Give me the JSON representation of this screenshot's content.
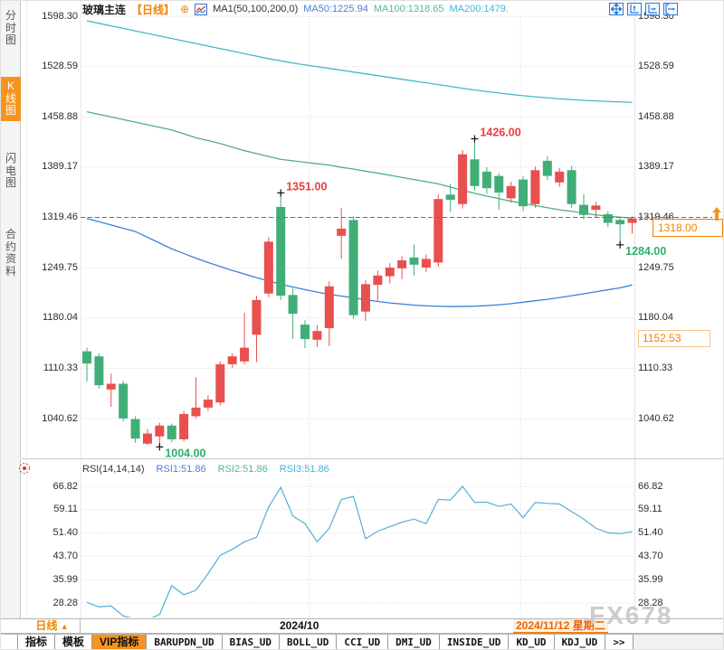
{
  "header": {
    "symbol": "玻璃主连",
    "period_tag": "【日线】",
    "ma_formula": "MA1(50,100,200,0)",
    "ma50_label": "MA50:1225.94",
    "ma100_label": "MA100:1318.65",
    "ma200_label": "MA200:1479."
  },
  "sidebar": {
    "items": [
      {
        "label": "分时图",
        "active": false
      },
      {
        "label": "K线图",
        "active": true
      },
      {
        "label": "闪电图",
        "active": false
      },
      {
        "label": "合约资料",
        "active": false
      }
    ]
  },
  "price_axis_ticks": [
    "1598.30",
    "1528.59",
    "1458.88",
    "1389.17",
    "1319.46",
    "1249.75",
    "1180.04",
    "1110.33",
    "1040.62"
  ],
  "rsi_axis_ticks": [
    "66.82",
    "59.11",
    "51.40",
    "43.70",
    "35.99",
    "28.28"
  ],
  "rsi_header": {
    "formula": "RSI(14,14,14)",
    "rsi1": "RSI1:51.86",
    "rsi2": "RSI2:51.86",
    "rsi3": "RSI3:51.86"
  },
  "price_markers": {
    "last_price": "1318.00",
    "settlement": "1152.53"
  },
  "xaxis": {
    "period": "日线",
    "period_arrow": "▲",
    "month_label": "2024/10",
    "date_label": "2024/11/12 星期二"
  },
  "tabs": {
    "items": [
      "指标",
      "模板",
      "VIP指标",
      "BARUPDN_UD",
      "BIAS_UD",
      "BOLL_UD",
      "CCI_UD",
      "DMI_UD",
      "INSIDE_UD",
      "KD_UD",
      "KDJ_UD",
      ">>"
    ],
    "active": "VIP指标"
  },
  "watermark": "FX678",
  "colors": {
    "up": "#e8504f",
    "down": "#41ae77",
    "ma50": "#3b82d8",
    "ma100": "#4fae85",
    "ma200": "#45b8c8",
    "ma50_text": "#4a7fd4",
    "ma100_text": "#55b98a",
    "ma200_text": "#46b4d8",
    "rsi_line": "#56aed6",
    "accent_orange": "#f7941d",
    "annotation_high": "#e83e3e",
    "annotation_low": "#2faf6e",
    "dashed_price_line": "#2e7ce0",
    "grid": "#d9d9d9"
  },
  "chart_data": {
    "type": "candlestick",
    "title": "玻璃主连 日线",
    "y_ticks": [
      1598.3,
      1528.59,
      1458.88,
      1389.17,
      1319.46,
      1249.75,
      1180.04,
      1110.33,
      1040.62
    ],
    "rsi_ticks": [
      66.82,
      59.11,
      51.4,
      43.7,
      35.99,
      28.28
    ],
    "last_price": 1318.0,
    "settlement_price": 1152.53,
    "dashed_line_price": 1319.46,
    "candles": [
      [
        1134,
        1139,
        1092,
        1117
      ],
      [
        1127,
        1131,
        1082,
        1087
      ],
      [
        1081,
        1103,
        1057,
        1089
      ],
      [
        1089,
        1093,
        1037,
        1041
      ],
      [
        1040,
        1044,
        1007,
        1013
      ],
      [
        1006,
        1026,
        1004,
        1020
      ],
      [
        1016,
        1035,
        1004,
        1031
      ],
      [
        1031,
        1034,
        1008,
        1012
      ],
      [
        1012,
        1051,
        1009,
        1047
      ],
      [
        1044,
        1098,
        1041,
        1056
      ],
      [
        1056,
        1073,
        1051,
        1067
      ],
      [
        1063,
        1120,
        1059,
        1116
      ],
      [
        1116,
        1131,
        1111,
        1127
      ],
      [
        1120,
        1187,
        1116,
        1139
      ],
      [
        1157,
        1211,
        1119,
        1205
      ],
      [
        1214,
        1292,
        1209,
        1286
      ],
      [
        1334,
        1351,
        1205,
        1211
      ],
      [
        1212,
        1221,
        1151,
        1186
      ],
      [
        1171,
        1177,
        1138,
        1151
      ],
      [
        1150,
        1170,
        1140,
        1162
      ],
      [
        1166,
        1231,
        1141,
        1224
      ],
      [
        1294,
        1333,
        1262,
        1304
      ],
      [
        1316,
        1321,
        1179,
        1184
      ],
      [
        1189,
        1233,
        1176,
        1227
      ],
      [
        1226,
        1246,
        1204,
        1239
      ],
      [
        1238,
        1256,
        1228,
        1250
      ],
      [
        1249,
        1266,
        1234,
        1260
      ],
      [
        1264,
        1282,
        1239,
        1254
      ],
      [
        1250,
        1268,
        1244,
        1262
      ],
      [
        1257,
        1351,
        1251,
        1345
      ],
      [
        1351,
        1366,
        1327,
        1344
      ],
      [
        1338,
        1413,
        1332,
        1407
      ],
      [
        1400,
        1426,
        1357,
        1363
      ],
      [
        1383,
        1389,
        1352,
        1360
      ],
      [
        1377,
        1381,
        1330,
        1354
      ],
      [
        1346,
        1369,
        1340,
        1363
      ],
      [
        1372,
        1377,
        1328,
        1335
      ],
      [
        1338,
        1390,
        1333,
        1385
      ],
      [
        1398,
        1404,
        1371,
        1377
      ],
      [
        1368,
        1388,
        1362,
        1383
      ],
      [
        1385,
        1391,
        1333,
        1338
      ],
      [
        1337,
        1352,
        1317,
        1323
      ],
      [
        1330,
        1341,
        1320,
        1336
      ],
      [
        1324,
        1328,
        1306,
        1312
      ],
      [
        1316,
        1319,
        1284,
        1310
      ],
      [
        1312,
        1321,
        1297,
        1318
      ]
    ],
    "ma50": [
      1318,
      1313.5,
      1309,
      1304.5,
      1300,
      1292,
      1284,
      1276,
      1269.5,
      1263,
      1257,
      1251.5,
      1246,
      1241,
      1236,
      1231.5,
      1227,
      1223,
      1219.5,
      1216,
      1213,
      1210.5,
      1208,
      1205.5,
      1203,
      1201,
      1199.5,
      1198,
      1197,
      1196.4,
      1196,
      1196.2,
      1196.5,
      1197.3,
      1198.5,
      1200,
      1202,
      1204,
      1206,
      1208.5,
      1211,
      1213.7,
      1216.5,
      1219.2,
      1222,
      1225.94
    ],
    "ma100": [
      1466,
      1462.4,
      1458.8,
      1455.2,
      1451.6,
      1448,
      1444.4,
      1440.8,
      1435.4,
      1430,
      1426,
      1422,
      1417,
      1412,
      1408,
      1404,
      1400,
      1398,
      1396,
      1394,
      1392,
      1389,
      1386.5,
      1383.5,
      1381,
      1378,
      1375,
      1372,
      1369,
      1366,
      1361.5,
      1357,
      1353,
      1349,
      1345.5,
      1342,
      1339,
      1336,
      1333,
      1330,
      1328,
      1325.5,
      1323,
      1321.3,
      1319.8,
      1318.65
    ],
    "ma200": [
      1592,
      1588.5,
      1585,
      1581.5,
      1578,
      1574.5,
      1571,
      1567.5,
      1564,
      1560.5,
      1557,
      1553.5,
      1550,
      1546.5,
      1543,
      1539.5,
      1536.5,
      1533.5,
      1531,
      1528.5,
      1526,
      1523.5,
      1521,
      1518.5,
      1516,
      1513.5,
      1511,
      1508.5,
      1506,
      1503.5,
      1501,
      1498.5,
      1496.2,
      1494,
      1492,
      1490,
      1488.2,
      1486.6,
      1485.2,
      1484,
      1482.8,
      1481.8,
      1481,
      1480.2,
      1479.6,
      1479
    ],
    "rsi": [
      28.5,
      27.0,
      27.3,
      24.0,
      23.0,
      22.7,
      24.5,
      34.0,
      31.0,
      32.5,
      38.0,
      44.0,
      46.0,
      48.5,
      50.0,
      60.0,
      66.5,
      57.0,
      54.5,
      48.5,
      53.0,
      62.5,
      63.5,
      49.5,
      52.0,
      53.5,
      55.0,
      56.0,
      54.5,
      62.5,
      62.3,
      66.8,
      61.5,
      61.6,
      60.2,
      61.0,
      56.5,
      61.5,
      61.2,
      61.0,
      58.5,
      56.0,
      53.0,
      51.5,
      51.2,
      51.86
    ],
    "annotations": [
      {
        "candle": 7,
        "side": "low",
        "label": "1004.00"
      },
      {
        "candle": 17,
        "side": "high",
        "label": "1351.00"
      },
      {
        "candle": 33,
        "side": "high",
        "label": "1426.00"
      },
      {
        "candle": 45,
        "side": "low",
        "label": "1284.00"
      }
    ]
  }
}
